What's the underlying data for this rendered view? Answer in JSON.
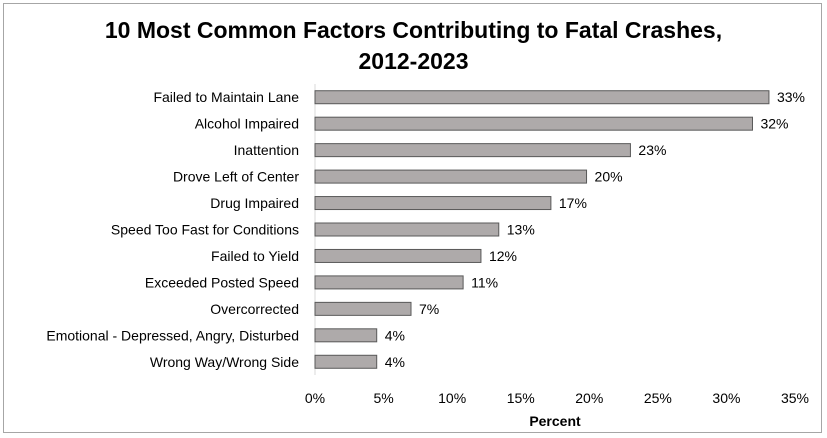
{
  "chart_data": {
    "type": "bar",
    "orientation": "horizontal",
    "title_line1": "10 Most Common Factors Contributing to Fatal Crashes,",
    "title_line2": "2012-2023",
    "categories": [
      "Failed to Maintain Lane",
      "Alcohol Impaired ",
      "Inattention",
      "Drove Left of Center",
      "Drug Impaired",
      "Speed Too Fast for Conditions",
      "Failed to Yield",
      "Exceeded Posted Speed",
      "Overcorrected",
      "Emotional - Depressed, Angry, Disturbed",
      "Wrong Way/Wrong Side"
    ],
    "values": [
      33.1,
      31.9,
      23.0,
      19.8,
      17.2,
      13.4,
      12.1,
      10.8,
      7.0,
      4.5,
      4.5
    ],
    "data_labels": [
      "33%",
      "32%",
      "23%",
      "20%",
      "17%",
      "13%",
      "12%",
      "11%",
      "7%",
      "4%",
      "4%"
    ],
    "xlabel": "Percent",
    "ylabel": "",
    "xlim": [
      0,
      35
    ],
    "x_ticks": [
      0,
      5,
      10,
      15,
      20,
      25,
      30,
      35
    ],
    "x_tick_labels": [
      "0%",
      "5%",
      "10%",
      "15%",
      "20%",
      "25%",
      "30%",
      "35%"
    ],
    "grid": false,
    "legend": "none",
    "bar_color": "#aeaaaa",
    "bar_edge_color": "#595959"
  }
}
